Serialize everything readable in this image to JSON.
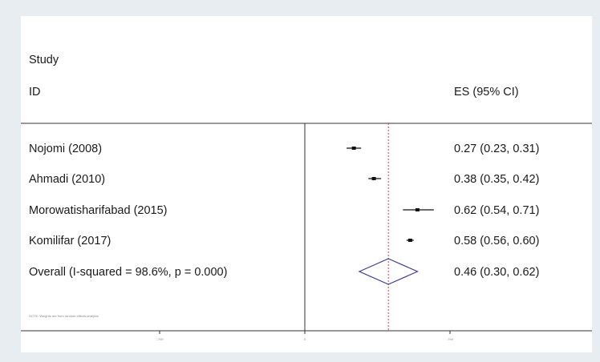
{
  "header": {
    "study_label": "Study",
    "id_label": "ID",
    "es_label": "ES (95% CI)"
  },
  "footnote": "NOTE: Weights are from random effects analysis",
  "chart_data": {
    "type": "forest",
    "title": "",
    "x_axis": {
      "null_line": 0,
      "ticks": [
        {
          "value": -0.799,
          "label": "-.799"
        },
        {
          "value": 0,
          "label": "0"
        },
        {
          "value": 0.799,
          "label": ".799"
        }
      ],
      "range": [
        -1.5,
        1.5
      ]
    },
    "studies": [
      {
        "name": "Nojomi (2008)",
        "es": 0.27,
        "lo": 0.23,
        "hi": 0.31,
        "label": "0.27 (0.23, 0.31)"
      },
      {
        "name": "Ahmadi (2010)",
        "es": 0.38,
        "lo": 0.35,
        "hi": 0.42,
        "label": "0.38 (0.35, 0.42)"
      },
      {
        "name": "Morowatisharifabad (2015)",
        "es": 0.62,
        "lo": 0.54,
        "hi": 0.71,
        "label": "0.62 (0.54, 0.71)"
      },
      {
        "name": "Komilifar (2017)",
        "es": 0.58,
        "lo": 0.56,
        "hi": 0.6,
        "label": "0.58 (0.56, 0.60)"
      }
    ],
    "overall": {
      "name": "Overall  (I-squared = 98.6%, p = 0.000)",
      "es": 0.46,
      "lo": 0.3,
      "hi": 0.62,
      "label": "0.46 (0.30, 0.62)"
    },
    "colors": {
      "diamond": "#3b3d8f",
      "axis": "#333333",
      "dashed": "#c44a4a",
      "marker": "#111111"
    }
  }
}
